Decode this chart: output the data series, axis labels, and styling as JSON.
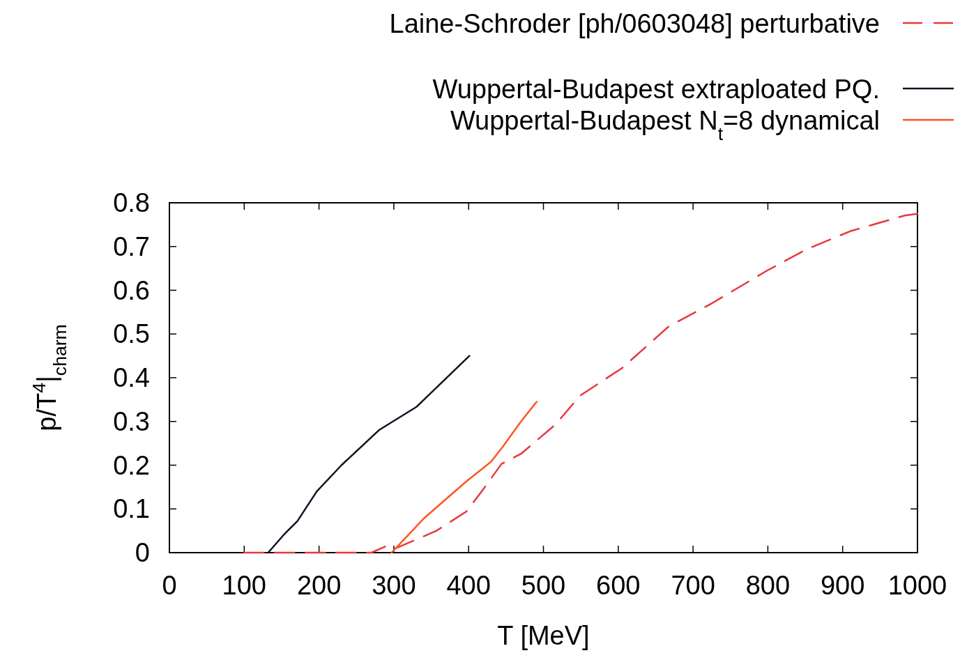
{
  "chart_data": {
    "type": "line",
    "xlabel": "T [MeV]",
    "ylabel": "p/T$^{4}$|$_{charm}$",
    "xlim": [
      0,
      1000
    ],
    "ylim": [
      0,
      0.8
    ],
    "xticks": [
      0,
      100,
      200,
      300,
      400,
      500,
      600,
      700,
      800,
      900,
      1000
    ],
    "yticks": [
      0,
      0.1,
      0.2,
      0.3,
      0.4,
      0.5,
      0.6,
      0.7,
      0.8
    ],
    "grid": false,
    "legend": "top right",
    "marker": "none",
    "series": [
      {
        "name": "Laine-Schroder [ph/0603048] perturbative",
        "color": "#e8383f",
        "line_style": "dashed",
        "x": [
          100,
          270,
          290,
          300,
          357,
          397,
          420,
          444,
          470,
          516,
          549,
          605,
          668,
          724,
          799,
          851,
          910,
          983,
          1000
        ],
        "values": [
          0,
          0,
          0.015,
          0.008,
          0.05,
          0.094,
          0.146,
          0.203,
          0.226,
          0.293,
          0.359,
          0.422,
          0.518,
          0.569,
          0.645,
          0.693,
          0.735,
          0.771,
          0.775
        ]
      },
      {
        "name": "Wuppertal-Budapest extraploated PQ.",
        "color": "#111122",
        "line_style": "solid",
        "x": [
          132,
          154,
          171,
          197,
          230,
          280,
          330,
          401
        ],
        "values": [
          0,
          0.043,
          0.072,
          0.14,
          0.2,
          0.28,
          0.333,
          0.45
        ]
      },
      {
        "name": "Wuppertal-Budapest N$_{t}$=8 dynamical",
        "color": "#ff5520",
        "line_style": "solid",
        "x": [
          297,
          340,
          397,
          430,
          446,
          470,
          491
        ],
        "values": [
          0,
          0.078,
          0.163,
          0.208,
          0.243,
          0.3,
          0.345
        ]
      }
    ]
  }
}
